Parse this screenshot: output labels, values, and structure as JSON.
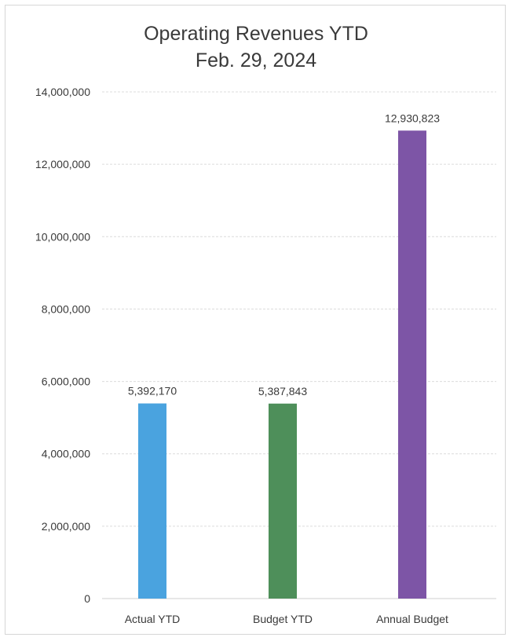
{
  "chart_data": {
    "type": "bar",
    "title": "Operating Revenues YTD",
    "subtitle": "Feb. 29, 2024",
    "xlabel": "",
    "ylabel": "",
    "categories": [
      "Actual YTD",
      "Budget YTD",
      "Annual Budget"
    ],
    "values": [
      5392170,
      5387843,
      12930823
    ],
    "data_labels": [
      "5,392,170",
      "5,387,843",
      "12,930,823"
    ],
    "colors": [
      "#4aa3df",
      "#4e8f5a",
      "#7d55a6"
    ],
    "ylim": [
      0,
      14000000
    ],
    "y_ticks": [
      0,
      2000000,
      4000000,
      6000000,
      8000000,
      10000000,
      12000000,
      14000000
    ],
    "y_tick_labels": [
      "0",
      "2,000,000",
      "4,000,000",
      "6,000,000",
      "8,000,000",
      "10,000,000",
      "12,000,000",
      "14,000,000"
    ],
    "grid": true,
    "legend": "none"
  }
}
